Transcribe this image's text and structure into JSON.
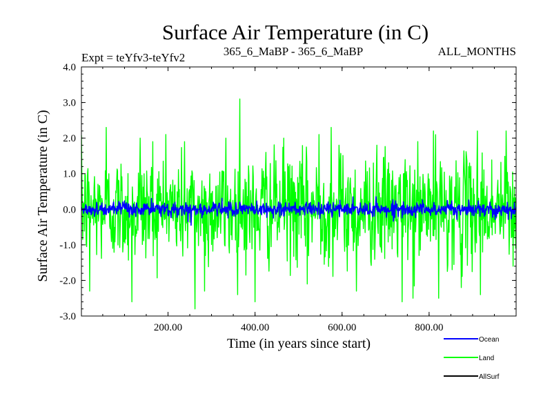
{
  "chart_data": {
    "type": "line",
    "title": "Surface Air Temperature (in C)",
    "subtitle_left": "Expt = teYfv3-teYfv2",
    "subtitle_center": "365_6_MaBP - 365_6_MaBP",
    "subtitle_right": "ALL_MONTHS",
    "xlabel": "Time (in years since start)",
    "ylabel": "Surface Air Temperature (in C)",
    "xlim": [
      1,
      1000
    ],
    "ylim": [
      -3.0,
      4.0
    ],
    "x_ticks": [
      200,
      400,
      600,
      800
    ],
    "x_tick_labels": [
      "200.00",
      "400.00",
      "600.00",
      "800.00"
    ],
    "y_ticks": [
      -3,
      -2,
      -1,
      0,
      1,
      2,
      3,
      4
    ],
    "y_tick_labels": [
      "-3.0",
      "-2.0",
      "-1.0",
      "0.0",
      "1.0",
      "2.0",
      "3.0",
      "4.0"
    ],
    "legend_position": "bottom-right",
    "series": [
      {
        "name": "Land",
        "color": "#00ff00",
        "description": "annual values, roughly -3.0 to 3.1",
        "n_points": 1000,
        "stddev": 0.75,
        "peaks": [
          [
            2,
            1.0
          ],
          [
            20,
            -2.3
          ],
          [
            58,
            2.3
          ],
          [
            117,
            -2.6
          ],
          [
            136,
            2.0
          ],
          [
            165,
            1.9
          ],
          [
            195,
            2.1
          ],
          [
            238,
            1.9
          ],
          [
            262,
            -2.8
          ],
          [
            284,
            -2.3
          ],
          [
            333,
            2.0
          ],
          [
            365,
            3.1
          ],
          [
            400,
            -2.6
          ],
          [
            425,
            1.6
          ],
          [
            466,
            2.0
          ],
          [
            520,
            -2.1
          ],
          [
            547,
            2.1
          ],
          [
            575,
            2.3
          ],
          [
            593,
            1.8
          ],
          [
            633,
            -2.3
          ],
          [
            680,
            1.8
          ],
          [
            738,
            -2.6
          ],
          [
            763,
            -2.5
          ],
          [
            810,
            2.2
          ],
          [
            822,
            -2.5
          ],
          [
            874,
            -2.2
          ],
          [
            911,
            2.2
          ],
          [
            918,
            -2.4
          ],
          [
            977,
            2.2
          ],
          [
            993,
            -1.6
          ]
        ]
      },
      {
        "name": "Ocean",
        "color": "#0000ff",
        "description": "annual values, roughly -0.4 to 0.35",
        "n_points": 1000,
        "stddev": 0.1,
        "peaks": [
          [
            246,
            -0.35
          ],
          [
            253,
            -0.45
          ],
          [
            365,
            0.2
          ],
          [
            625,
            0.35
          ],
          [
            940,
            0.2
          ]
        ]
      },
      {
        "name": "AllSurf",
        "color": "#000000",
        "description": "legend entry only; line not visible in plot",
        "n_points": 0
      }
    ]
  }
}
